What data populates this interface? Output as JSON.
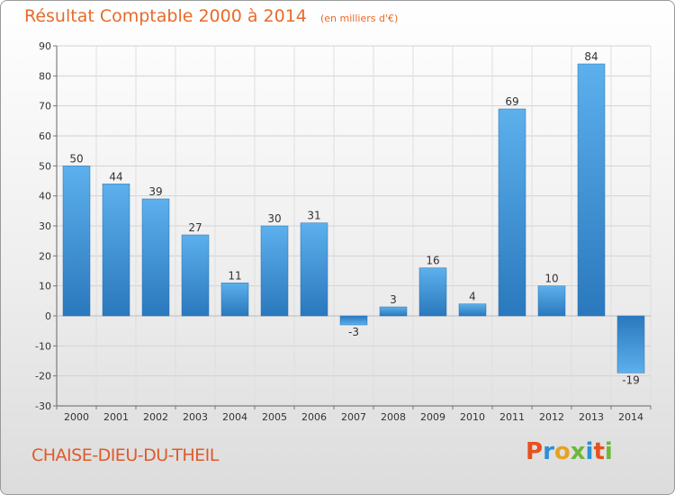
{
  "chart_data": {
    "type": "bar",
    "title": "Résultat Comptable 2000 à 2014",
    "subtitle": "(en milliers d'€)",
    "categories": [
      "2000",
      "2001",
      "2002",
      "2003",
      "2004",
      "2005",
      "2006",
      "2007",
      "2008",
      "2009",
      "2010",
      "2011",
      "2012",
      "2013",
      "2014"
    ],
    "values": [
      50,
      44,
      39,
      27,
      11,
      30,
      31,
      -3,
      3,
      16,
      4,
      69,
      10,
      84,
      -19
    ],
    "ylim": [
      -30,
      90
    ],
    "yticks": [
      -30,
      -20,
      -10,
      0,
      10,
      20,
      30,
      40,
      50,
      60,
      70,
      80,
      90
    ],
    "xlabel": "",
    "ylabel": "",
    "grid": true,
    "bar_color": "#3a8fd4"
  },
  "footer": {
    "commune": "CHAISE-DIEU-DU-THEIL",
    "logo": "Proxiti"
  },
  "colors": {
    "title": "#e86a2a",
    "logo_letters": [
      "#e8501f",
      "#2d8fd6",
      "#e8a21f",
      "#6cb83a",
      "#2d8fd6",
      "#e8501f",
      "#6cb83a"
    ]
  }
}
